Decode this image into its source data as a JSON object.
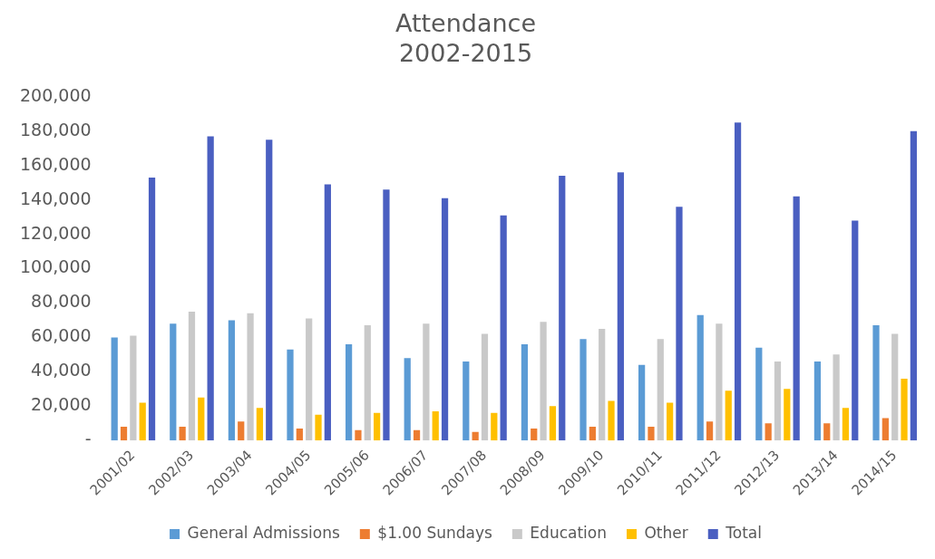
{
  "chart_data": {
    "type": "bar",
    "title": "Attendance",
    "subtitle": "2002-2015",
    "categories": [
      "2001/02",
      "2002/03",
      "2003/04",
      "2004/05",
      "2005/06",
      "2006/07",
      "2007/08",
      "2008/09",
      "2009/10",
      "2010/11",
      "2011/12",
      "2012/13",
      "2013/14",
      "2014/15"
    ],
    "series": [
      {
        "name": "General Admissions",
        "color": "#5b9bd5",
        "values": [
          60000,
          68000,
          70000,
          53000,
          56000,
          48000,
          46000,
          56000,
          59000,
          44000,
          73000,
          54000,
          46000,
          67000
        ]
      },
      {
        "name": "$1.00 Sundays",
        "color": "#ed7d31",
        "values": [
          8000,
          8000,
          11000,
          7000,
          6000,
          6000,
          5000,
          7000,
          8000,
          8000,
          11000,
          10000,
          10000,
          13000
        ]
      },
      {
        "name": "Education",
        "color": "#c9c9c9",
        "values": [
          61000,
          75000,
          74000,
          71000,
          67000,
          68000,
          62000,
          69000,
          65000,
          59000,
          68000,
          46000,
          50000,
          62000
        ]
      },
      {
        "name": "Other",
        "color": "#ffc000",
        "values": [
          22000,
          25000,
          19000,
          15000,
          16000,
          17000,
          16000,
          20000,
          23000,
          22000,
          29000,
          30000,
          19000,
          36000
        ]
      },
      {
        "name": "Total",
        "color": "#4a5fc1",
        "values": [
          153000,
          177000,
          175000,
          149000,
          146000,
          141000,
          131000,
          154000,
          156000,
          136000,
          185000,
          142000,
          128000,
          180000
        ]
      }
    ],
    "ylim": [
      0,
      200000
    ],
    "yticks": [
      {
        "value": 0,
        "label": "-"
      },
      {
        "value": 20000,
        "label": "20,000"
      },
      {
        "value": 40000,
        "label": "40,000"
      },
      {
        "value": 60000,
        "label": "60,000"
      },
      {
        "value": 80000,
        "label": "80,000"
      },
      {
        "value": 100000,
        "label": "100,000"
      },
      {
        "value": 120000,
        "label": "120,000"
      },
      {
        "value": 140000,
        "label": "140,000"
      },
      {
        "value": 160000,
        "label": "160,000"
      },
      {
        "value": 180000,
        "label": "180,000"
      },
      {
        "value": 200000,
        "label": "200,000"
      }
    ],
    "grid": false,
    "legend": "bottom"
  }
}
